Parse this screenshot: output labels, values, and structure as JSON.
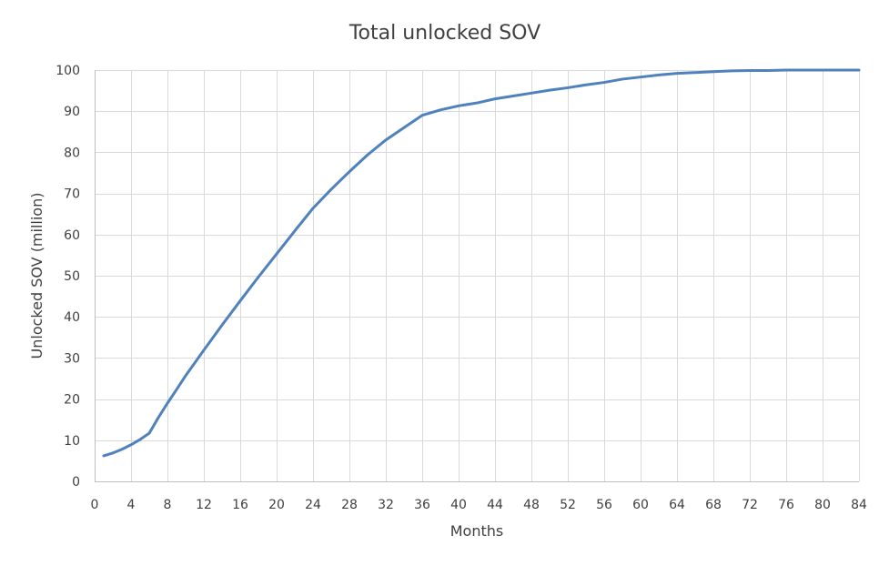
{
  "chart_data": {
    "type": "line",
    "title": "Total unlocked SOV",
    "xlabel": "Months",
    "ylabel": "Unlocked SOV (million)",
    "xlim": [
      0,
      84
    ],
    "ylim": [
      0,
      100
    ],
    "x_ticks": [
      0,
      4,
      8,
      12,
      16,
      20,
      24,
      28,
      32,
      36,
      40,
      44,
      48,
      52,
      56,
      60,
      64,
      68,
      72,
      76,
      80,
      84
    ],
    "y_ticks": [
      0,
      10,
      20,
      30,
      40,
      50,
      60,
      70,
      80,
      90,
      100
    ],
    "grid": true,
    "legend": "none",
    "series": [
      {
        "color": "#4f81bd",
        "x": [
          1,
          2,
          3,
          4,
          5,
          6,
          7,
          8,
          9,
          10,
          12,
          14,
          16,
          18,
          20,
          22,
          24,
          26,
          28,
          30,
          32,
          34,
          36,
          38,
          40,
          42,
          44,
          46,
          48,
          50,
          52,
          54,
          56,
          58,
          60,
          62,
          64,
          66,
          68,
          70,
          72,
          74,
          76,
          78,
          80,
          82,
          84
        ],
        "y": [
          6.2,
          6.9,
          7.8,
          8.9,
          10.2,
          11.7,
          15.5,
          19.0,
          22.3,
          25.7,
          31.9,
          38.0,
          43.9,
          49.7,
          55.3,
          60.9,
          66.4,
          71.0,
          75.3,
          79.4,
          83.0,
          86.0,
          89.0,
          90.3,
          91.3,
          92.0,
          93.0,
          93.7,
          94.4,
          95.1,
          95.7,
          96.4,
          97.0,
          97.8,
          98.3,
          98.8,
          99.2,
          99.4,
          99.6,
          99.8,
          99.9,
          99.9,
          100.0,
          100.0,
          100.0,
          100.0,
          100.0
        ]
      }
    ]
  }
}
